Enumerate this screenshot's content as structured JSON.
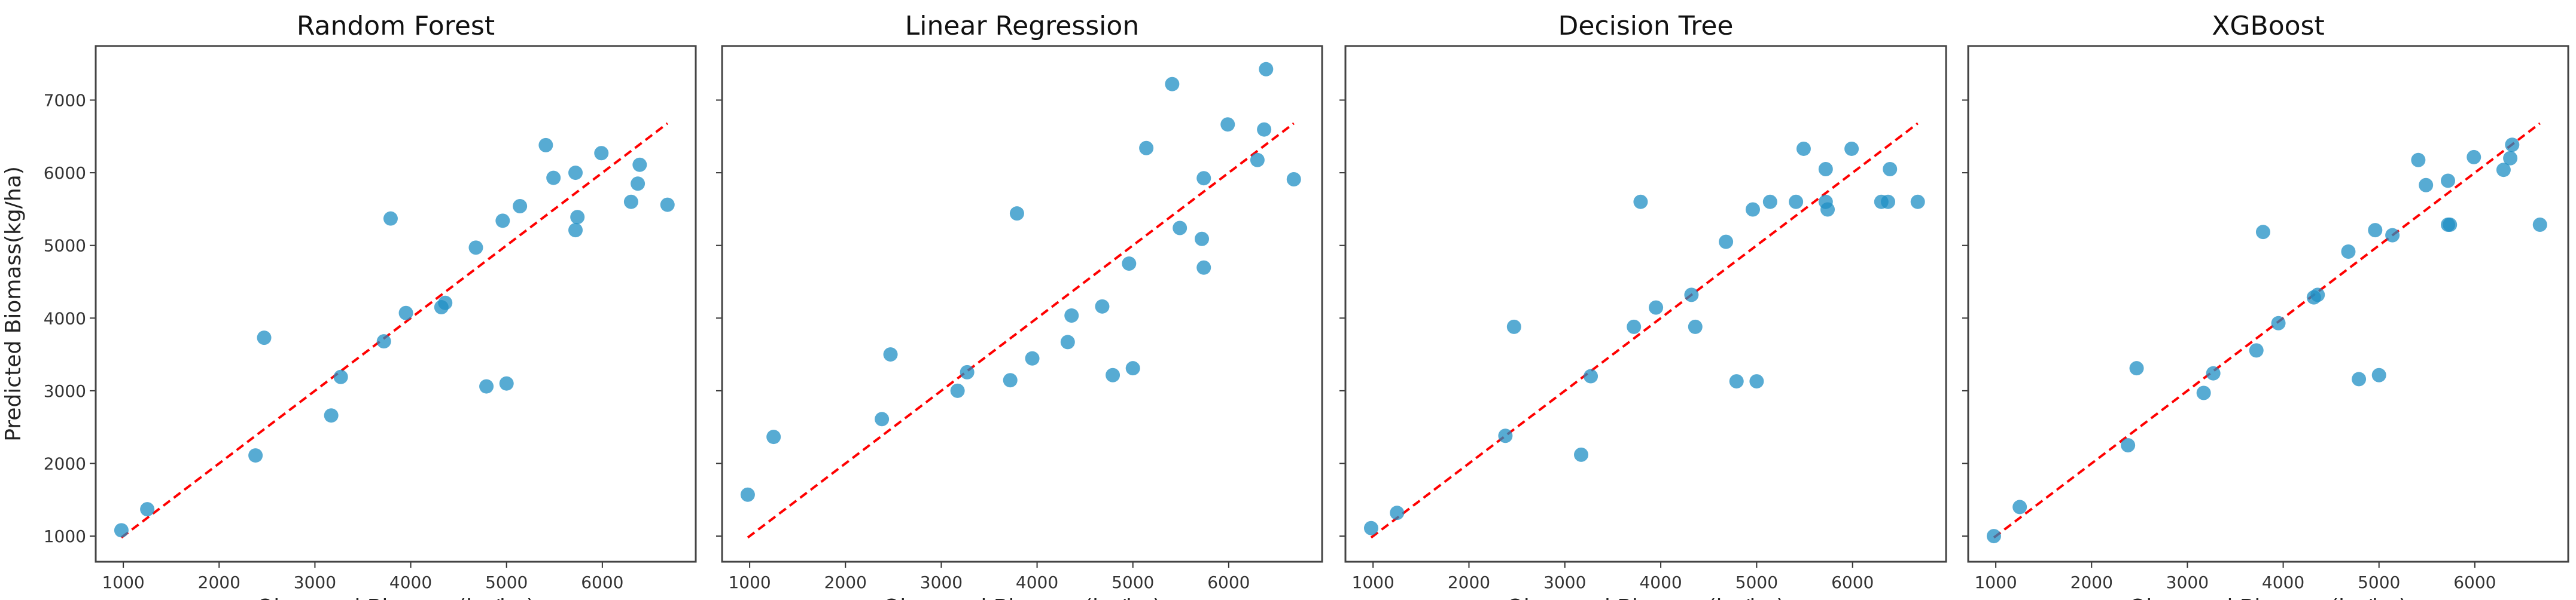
{
  "chart_data": [
    {
      "type": "scatter",
      "title": "Random Forest",
      "xlabel": "Observed Biomass(kg/ha)",
      "ylabel": "Predicted Biomass(kg/ha)",
      "xlim": [
        712,
        6975
      ],
      "ylim": [
        647,
        7744
      ],
      "xticks": [
        1000,
        2000,
        3000,
        4000,
        5000,
        6000
      ],
      "yticks": [
        1000,
        2000,
        3000,
        4000,
        5000,
        6000,
        7000
      ],
      "reference_line": {
        "style": "dashed",
        "color": "#ff0000",
        "from": [
          980,
          980
        ],
        "to": [
          6680,
          6680
        ]
      },
      "point_color": "#1f8fc4",
      "x": [
        980,
        1250,
        2380,
        2470,
        3170,
        3270,
        3720,
        3790,
        3950,
        4320,
        4360,
        4680,
        4790,
        4960,
        5000,
        5140,
        5410,
        5490,
        5720,
        5720,
        5740,
        5990,
        6300,
        6370,
        6390,
        6680
      ],
      "y": [
        1080,
        1370,
        2110,
        3730,
        2660,
        3190,
        3680,
        5370,
        4070,
        4150,
        4210,
        4970,
        3060,
        5340,
        3100,
        5540,
        6380,
        5930,
        6000,
        5210,
        5390,
        6270,
        5600,
        5850,
        6110,
        5560
      ]
    },
    {
      "type": "scatter",
      "title": "Linear Regression",
      "xlabel": "Observed Biomass(kg/ha)",
      "ylabel": "",
      "xlim": [
        712,
        6975
      ],
      "ylim": [
        647,
        7744
      ],
      "xticks": [
        1000,
        2000,
        3000,
        4000,
        5000,
        6000
      ],
      "yticks": [
        1000,
        2000,
        3000,
        4000,
        5000,
        6000,
        7000
      ],
      "reference_line": {
        "style": "dashed",
        "color": "#ff0000",
        "from": [
          980,
          980
        ],
        "to": [
          6680,
          6680
        ]
      },
      "point_color": "#1f8fc4",
      "x": [
        980,
        1250,
        2380,
        2470,
        3170,
        3270,
        3720,
        3790,
        3950,
        4320,
        4360,
        4680,
        4790,
        4960,
        5000,
        5140,
        5410,
        5490,
        5740,
        5720,
        5740,
        5990,
        6300,
        6370,
        6390,
        6680
      ],
      "y": [
        1570,
        2365,
        2610,
        3500,
        3000,
        3255,
        3145,
        5440,
        3445,
        3670,
        4035,
        4160,
        3215,
        4750,
        3310,
        6340,
        7220,
        5240,
        5925,
        5090,
        4695,
        6665,
        6175,
        6595,
        7425,
        5910
      ]
    },
    {
      "type": "scatter",
      "title": "Decision Tree",
      "xlabel": "Observed Biomass(kg/ha)",
      "ylabel": "",
      "xlim": [
        712,
        6975
      ],
      "ylim": [
        647,
        7744
      ],
      "xticks": [
        1000,
        2000,
        3000,
        4000,
        5000,
        6000
      ],
      "yticks": [
        1000,
        2000,
        3000,
        4000,
        5000,
        6000,
        7000
      ],
      "reference_line": {
        "style": "dashed",
        "color": "#ff0000",
        "from": [
          980,
          980
        ],
        "to": [
          6680,
          6680
        ]
      },
      "point_color": "#1f8fc4",
      "x": [
        980,
        1250,
        2380,
        2470,
        3170,
        3270,
        3720,
        3790,
        3950,
        4320,
        4360,
        4680,
        4790,
        4960,
        5000,
        5140,
        5410,
        5490,
        5720,
        5720,
        5740,
        5990,
        6300,
        6370,
        6390,
        6680
      ],
      "y": [
        1110,
        1320,
        2380,
        3880,
        2120,
        3200,
        3880,
        5600,
        4145,
        4320,
        3880,
        5050,
        3130,
        5495,
        3130,
        5600,
        5600,
        6330,
        6050,
        5600,
        5495,
        6330,
        5600,
        5600,
        6050,
        5600
      ]
    },
    {
      "type": "scatter",
      "title": "XGBoost",
      "xlabel": "Observed Biomass(kg/ha)",
      "ylabel": "",
      "xlim": [
        712,
        6975
      ],
      "ylim": [
        647,
        7744
      ],
      "xticks": [
        1000,
        2000,
        3000,
        4000,
        5000,
        6000
      ],
      "yticks": [
        1000,
        2000,
        3000,
        4000,
        5000,
        6000,
        7000
      ],
      "reference_line": {
        "style": "dashed",
        "color": "#ff0000",
        "from": [
          980,
          980
        ],
        "to": [
          6680,
          6680
        ]
      },
      "point_color": "#1f8fc4",
      "x": [
        980,
        1250,
        2380,
        2470,
        3170,
        3270,
        3720,
        3790,
        3950,
        4320,
        4360,
        4680,
        4790,
        4960,
        5000,
        5140,
        5410,
        5490,
        5720,
        5720,
        5740,
        5990,
        6300,
        6370,
        6390,
        6680
      ],
      "y": [
        1000,
        1400,
        2250,
        3310,
        2970,
        3240,
        3555,
        5185,
        3930,
        4285,
        4320,
        4915,
        3160,
        5210,
        3215,
        5140,
        6175,
        5830,
        5890,
        5285,
        5285,
        6215,
        6040,
        6200,
        6385,
        5285
      ]
    }
  ]
}
